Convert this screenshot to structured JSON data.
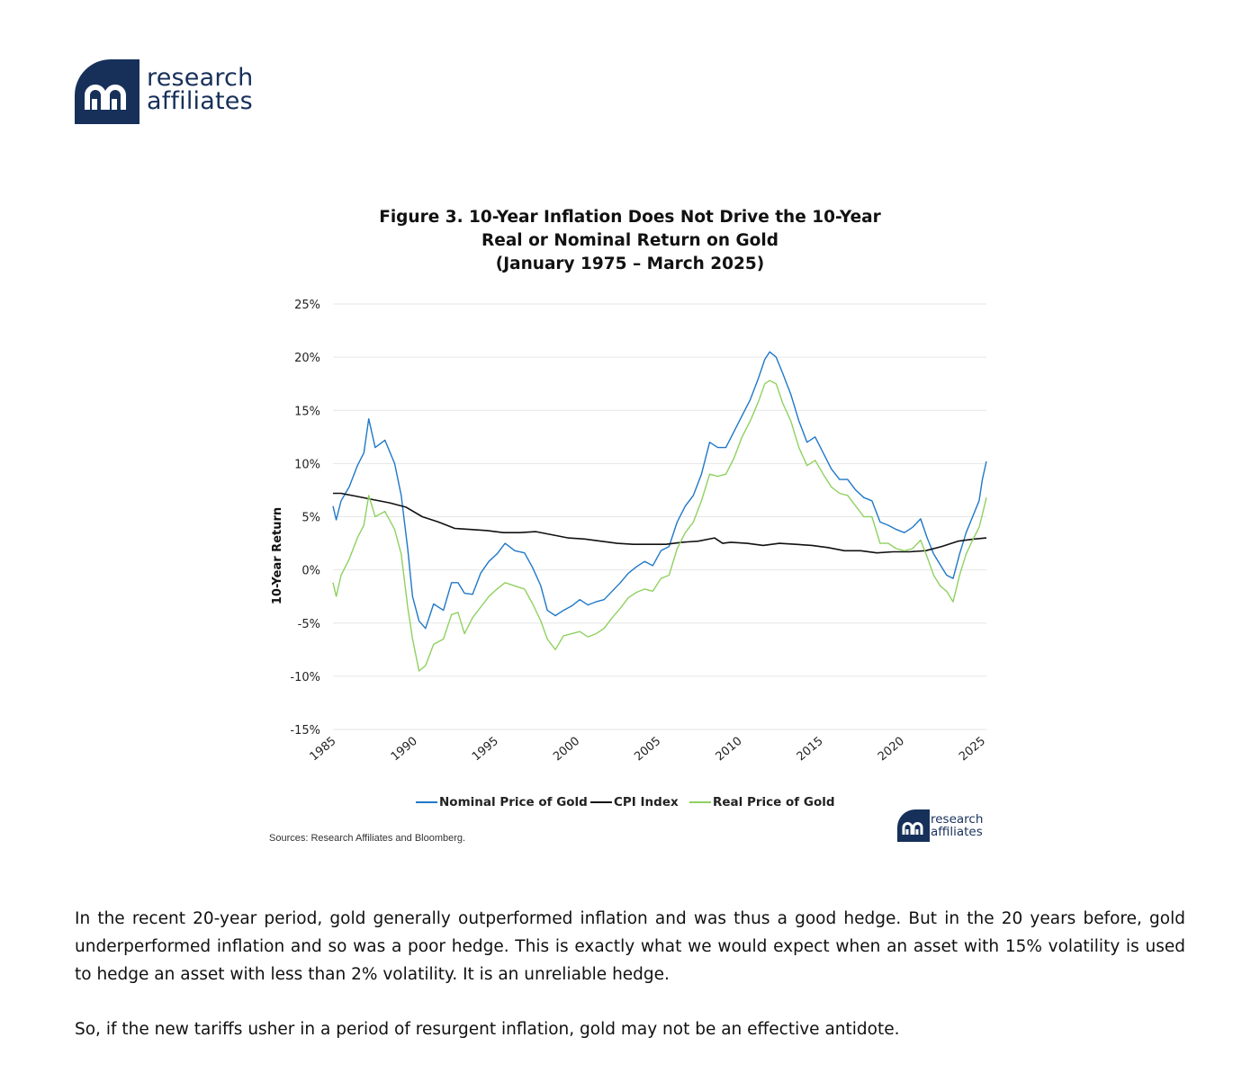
{
  "logo": {
    "line1": "research",
    "line2": "affiliates"
  },
  "figure": {
    "title_lines": [
      "Figure 3. 10-Year Inflation Does Not Drive the 10-Year",
      "Real or Nominal Return on Gold",
      "(January 1975 – March 2025)"
    ],
    "source": "Sources: Research Affiliates and Bloomberg."
  },
  "colors": {
    "nominal": "#1f78c8",
    "cpi": "#111111",
    "real": "#8fd160",
    "brand": "#17305a",
    "grid": "#e6e6e6"
  },
  "chart_data": {
    "type": "line",
    "title": "Figure 3. 10-Year Inflation Does Not Drive the 10-Year Real or Nominal Return on Gold (January 1975 – March 2025)",
    "xlabel": "",
    "ylabel": "10-Year Return",
    "xlim": [
      1985,
      2025.25
    ],
    "ylim": [
      -15,
      25
    ],
    "xticks": [
      1985,
      1990,
      1995,
      2000,
      2005,
      2010,
      2015,
      2020,
      2025
    ],
    "yticks": [
      {
        "value": 25,
        "label": "25%"
      },
      {
        "value": 20,
        "label": "20%"
      },
      {
        "value": 15,
        "label": "15%"
      },
      {
        "value": 10,
        "label": "10%"
      },
      {
        "value": 5,
        "label": "5%"
      },
      {
        "value": 0,
        "label": "0%"
      },
      {
        "value": -5,
        "label": "-5%"
      },
      {
        "value": -10,
        "label": "-10%"
      },
      {
        "value": -15,
        "label": "-15%"
      }
    ],
    "grid": true,
    "legend_position": "bottom",
    "series": [
      {
        "name": "Nominal Price of Gold",
        "color": "#1f78c8",
        "x": [
          1985,
          1985.2,
          1985.5,
          1986,
          1986.5,
          1986.9,
          1987.2,
          1987.6,
          1988.2,
          1988.8,
          1989.2,
          1989.6,
          1989.9,
          1990.3,
          1990.7,
          1991.2,
          1991.8,
          1992.3,
          1992.7,
          1993.1,
          1993.6,
          1994.1,
          1994.6,
          1995.1,
          1995.6,
          1996.2,
          1996.8,
          1997.3,
          1997.8,
          1998.2,
          1998.7,
          1999.2,
          1999.7,
          2000.2,
          2000.7,
          2001.2,
          2001.7,
          2002.2,
          2002.7,
          2003.2,
          2003.7,
          2004.2,
          2004.7,
          2005.2,
          2005.7,
          2006.2,
          2006.7,
          2007.2,
          2007.7,
          2008.2,
          2008.7,
          2009.2,
          2009.7,
          2010.2,
          2010.7,
          2011.2,
          2011.6,
          2011.9,
          2012.3,
          2012.7,
          2013.2,
          2013.7,
          2014.2,
          2014.7,
          2015.2,
          2015.7,
          2016.2,
          2016.7,
          2017.2,
          2017.7,
          2018.2,
          2018.7,
          2019.2,
          2019.7,
          2020.2,
          2020.7,
          2021.2,
          2021.6,
          2022.0,
          2022.4,
          2022.8,
          2023.2,
          2023.6,
          2024.0,
          2024.4,
          2024.8,
          2025.0,
          2025.25
        ],
        "y": [
          6.0,
          4.7,
          6.5,
          7.8,
          9.8,
          11.0,
          14.2,
          11.5,
          12.2,
          10.0,
          7.0,
          2.0,
          -2.5,
          -4.8,
          -5.5,
          -3.2,
          -3.8,
          -1.2,
          -1.2,
          -2.2,
          -2.3,
          -0.3,
          0.8,
          1.5,
          2.5,
          1.8,
          1.6,
          0.2,
          -1.5,
          -3.8,
          -4.3,
          -3.8,
          -3.4,
          -2.8,
          -3.3,
          -3.0,
          -2.8,
          -2.0,
          -1.2,
          -0.3,
          0.3,
          0.8,
          0.4,
          1.8,
          2.2,
          4.5,
          6.0,
          7.0,
          9.0,
          12.0,
          11.5,
          11.5,
          13.0,
          14.5,
          16.0,
          18.0,
          19.8,
          20.5,
          20.0,
          18.5,
          16.5,
          14.0,
          12.0,
          12.5,
          11.0,
          9.5,
          8.5,
          8.5,
          7.5,
          6.8,
          6.5,
          4.5,
          4.2,
          3.8,
          3.5,
          4.0,
          4.8,
          3.0,
          1.5,
          0.5,
          -0.5,
          -0.8,
          1.5,
          3.5,
          5.0,
          6.5,
          8.5,
          10.2
        ]
      },
      {
        "name": "CPI Index",
        "color": "#111111",
        "x": [
          1985,
          1985.5,
          1986.5,
          1987.5,
          1988.5,
          1989.5,
          1990.5,
          1991.5,
          1992.5,
          1993.5,
          1994.5,
          1995.5,
          1996.5,
          1997.5,
          1998.5,
          1999.5,
          2000.5,
          2001.5,
          2002.5,
          2003.5,
          2004.5,
          2005.5,
          2006.5,
          2007.5,
          2008.5,
          2009.0,
          2009.5,
          2010.5,
          2011.5,
          2012.5,
          2013.5,
          2014.5,
          2015.5,
          2016.5,
          2017.5,
          2018.5,
          2019.5,
          2020.5,
          2021.5,
          2022.5,
          2023.5,
          2024.5,
          2025.25
        ],
        "y": [
          7.2,
          7.2,
          6.9,
          6.6,
          6.3,
          5.9,
          5.0,
          4.5,
          3.9,
          3.8,
          3.7,
          3.5,
          3.5,
          3.6,
          3.3,
          3.0,
          2.9,
          2.7,
          2.5,
          2.4,
          2.4,
          2.4,
          2.6,
          2.7,
          3.0,
          2.5,
          2.6,
          2.5,
          2.3,
          2.5,
          2.4,
          2.3,
          2.1,
          1.8,
          1.8,
          1.6,
          1.7,
          1.7,
          1.8,
          2.2,
          2.7,
          2.9,
          3.0
        ]
      },
      {
        "name": "Real Price of Gold",
        "color": "#8fd160",
        "x": [
          1985,
          1985.2,
          1985.5,
          1986,
          1986.5,
          1986.9,
          1987.2,
          1987.6,
          1988.2,
          1988.8,
          1989.2,
          1989.6,
          1989.9,
          1990.3,
          1990.7,
          1991.2,
          1991.8,
          1992.3,
          1992.7,
          1993.1,
          1993.6,
          1994.1,
          1994.6,
          1995.1,
          1995.6,
          1996.2,
          1996.8,
          1997.3,
          1997.8,
          1998.2,
          1998.7,
          1999.2,
          1999.7,
          2000.2,
          2000.7,
          2001.2,
          2001.7,
          2002.2,
          2002.7,
          2003.2,
          2003.7,
          2004.2,
          2004.7,
          2005.2,
          2005.7,
          2006.2,
          2006.7,
          2007.2,
          2007.7,
          2008.2,
          2008.7,
          2009.2,
          2009.7,
          2010.2,
          2010.7,
          2011.2,
          2011.6,
          2011.9,
          2012.3,
          2012.7,
          2013.2,
          2013.7,
          2014.2,
          2014.7,
          2015.2,
          2015.7,
          2016.2,
          2016.7,
          2017.2,
          2017.7,
          2018.2,
          2018.7,
          2019.2,
          2019.7,
          2020.2,
          2020.7,
          2021.2,
          2021.6,
          2022.0,
          2022.4,
          2022.8,
          2023.2,
          2023.6,
          2024.0,
          2024.4,
          2024.8,
          2025.0,
          2025.25
        ],
        "y": [
          -1.2,
          -2.5,
          -0.5,
          1.0,
          3.0,
          4.2,
          7.0,
          5.0,
          5.5,
          3.8,
          1.5,
          -3.5,
          -6.5,
          -9.5,
          -9.0,
          -7.0,
          -6.5,
          -4.2,
          -4.0,
          -6.0,
          -4.5,
          -3.5,
          -2.5,
          -1.8,
          -1.2,
          -1.5,
          -1.8,
          -3.2,
          -4.8,
          -6.5,
          -7.5,
          -6.2,
          -6.0,
          -5.8,
          -6.3,
          -6.0,
          -5.5,
          -4.5,
          -3.6,
          -2.6,
          -2.1,
          -1.8,
          -2.0,
          -0.8,
          -0.5,
          2.0,
          3.5,
          4.5,
          6.5,
          9.0,
          8.8,
          9.0,
          10.5,
          12.5,
          14.0,
          15.8,
          17.5,
          17.8,
          17.5,
          15.7,
          14.0,
          11.5,
          9.8,
          10.3,
          9.0,
          7.8,
          7.2,
          7.0,
          6.0,
          5.0,
          5.0,
          2.5,
          2.5,
          2.0,
          1.8,
          2.0,
          2.8,
          1.2,
          -0.5,
          -1.5,
          -2.0,
          -3.0,
          -0.5,
          1.5,
          2.8,
          4.0,
          5.2,
          6.8
        ]
      }
    ]
  },
  "body": {
    "p1": "In the recent 20-year period, gold generally outperformed inflation and was thus a good hedge. But in the 20 years before, gold underperformed inflation and so was a poor hedge. This is exactly what we would expect when an asset with 15% volatility is used to hedge an asset with less than 2% volatility. It is an unreliable hedge.",
    "p2": "So, if the new tariffs usher in a period of resurgent inflation, gold may not be an effective antidote."
  }
}
